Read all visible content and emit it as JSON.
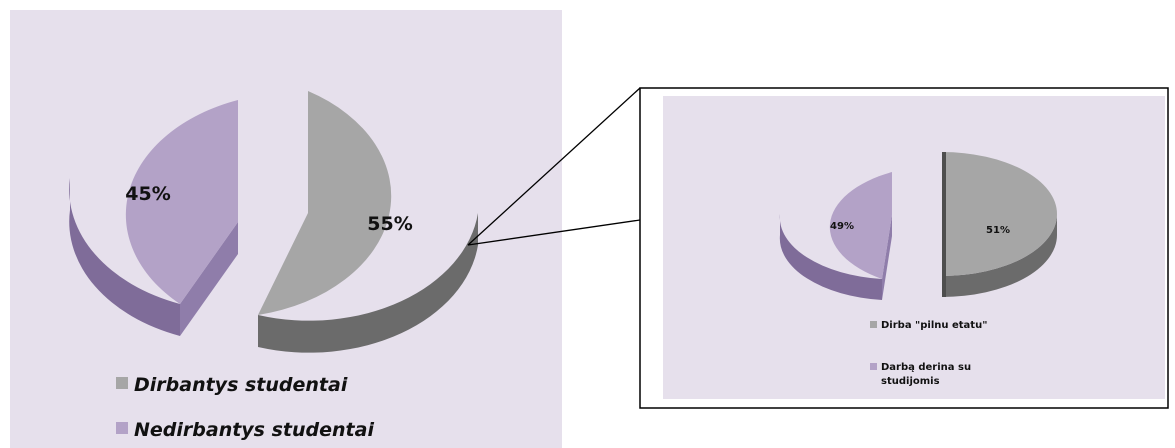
{
  "colors": {
    "panel_bg": "#e6e0ec",
    "gray_top": "#a6a6a6",
    "gray_side": "#6b6b6b",
    "purple_top": "#b3a2c7",
    "purple_side": "#7f6c99",
    "frame": "#000000"
  },
  "chart_data": [
    {
      "type": "pie",
      "exploded": true,
      "three_d": true,
      "labels": [
        "Dirbantys studentai",
        "Nedirbantys studentai"
      ],
      "values": [
        55,
        45
      ],
      "value_labels": [
        "55%",
        "45%"
      ],
      "legend_position": "bottom-left"
    },
    {
      "type": "pie",
      "exploded": true,
      "three_d": true,
      "labels": [
        "Dirba \"pilnu etatu\"",
        "Darbą derina su studijomis"
      ],
      "legend_lines": [
        [
          "Dirba \"pilnu etatu\""
        ],
        [
          "Darbą derina su",
          "studijomis"
        ]
      ],
      "values": [
        51,
        49
      ],
      "value_labels": [
        "51%",
        "49%"
      ],
      "legend_position": "bottom"
    }
  ]
}
